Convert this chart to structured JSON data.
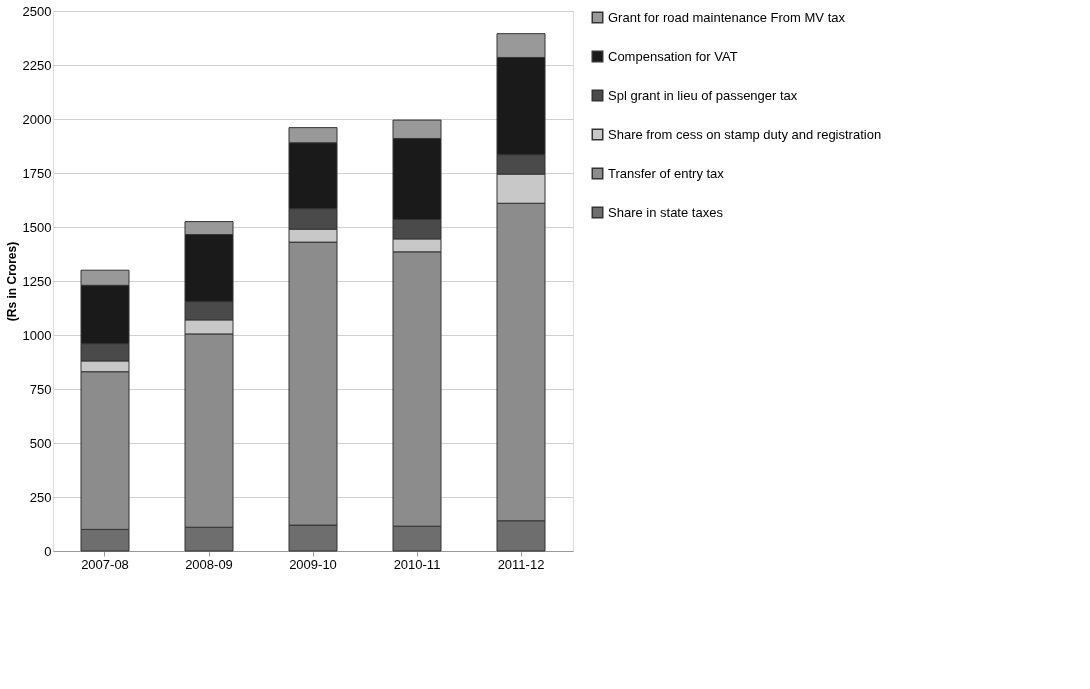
{
  "chart_data": {
    "type": "bar",
    "stacked": true,
    "ylabel": "(Rs in Crores)",
    "categories": [
      "2007-08",
      "2008-09",
      "2009-10",
      "2010-11",
      "2011-12"
    ],
    "series": [
      {
        "name": "Share in state taxes",
        "color": "#6e6e6e",
        "values": [
          100,
          110,
          120,
          115,
          140
        ]
      },
      {
        "name": "Transfer of entry tax",
        "color": "#8c8c8c",
        "values": [
          730,
          895,
          1310,
          1270,
          1470
        ]
      },
      {
        "name": "Share from cess on stamp duty and registration",
        "color": "#c8c8c8",
        "values": [
          50,
          65,
          60,
          60,
          135
        ]
      },
      {
        "name": "Spl grant in lieu of passenger tax",
        "color": "#4a4a4a",
        "values": [
          80,
          85,
          95,
          90,
          90
        ]
      },
      {
        "name": "Compensation for VAT",
        "color": "#1a1a1a",
        "values": [
          270,
          310,
          305,
          375,
          450
        ]
      },
      {
        "name": "Grant for road maintenance From MV tax",
        "color": "#999999",
        "values": [
          70,
          60,
          70,
          85,
          110
        ]
      }
    ],
    "ylim": [
      0,
      2500
    ],
    "yticks": [
      0,
      250,
      500,
      750,
      1000,
      1250,
      1500,
      1750,
      2000,
      2250,
      2500
    ],
    "grid": "y",
    "legend": "right"
  }
}
